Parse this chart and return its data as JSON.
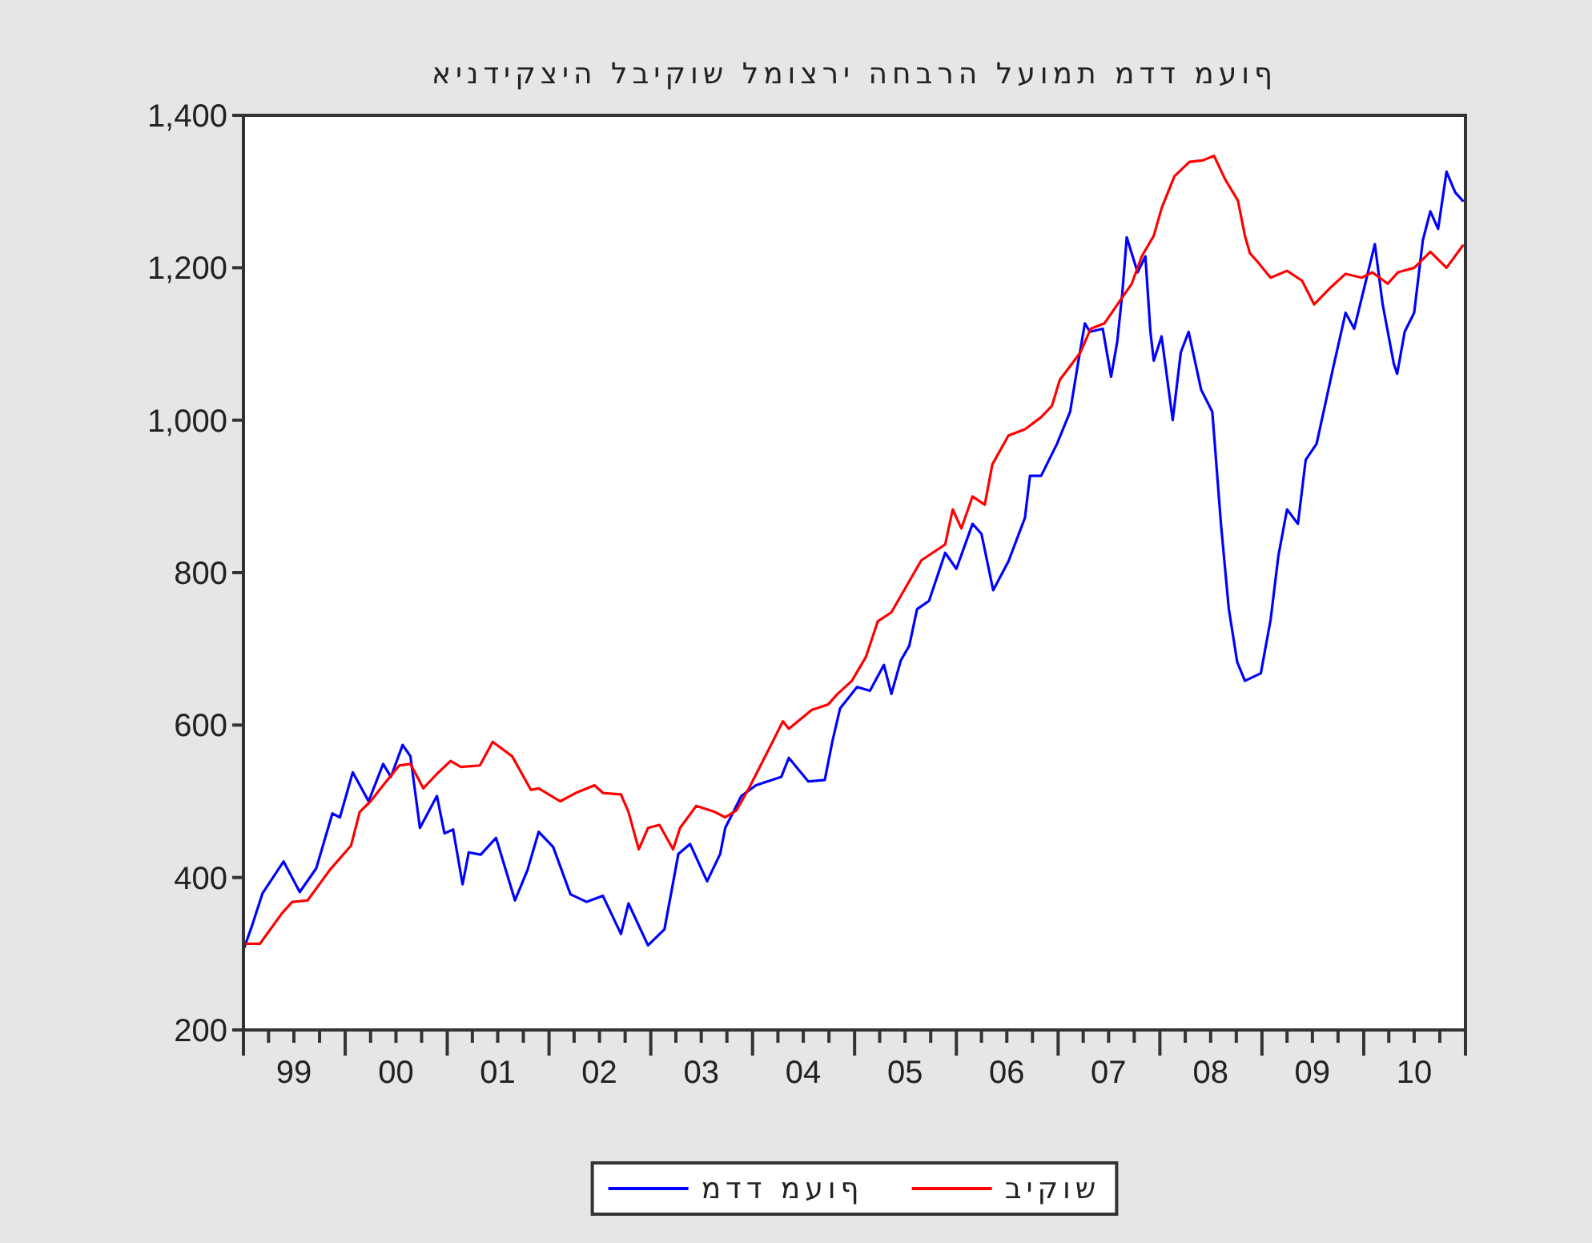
{
  "chart_data": {
    "type": "line",
    "title": "אינדיקציה לביקוש למוצרי החברה לעומת מדד מעוף",
    "xlim": [
      "1999-01-01",
      "2011-01-01"
    ],
    "xticks": [
      {
        "value": "1999",
        "label": null
      },
      {
        "value": "1999-04",
        "label": null
      },
      {
        "value": "1999-07",
        "label": "99"
      },
      {
        "value": "1999-10",
        "label": null
      },
      {
        "value": "2000",
        "label": null
      },
      {
        "value": "2000-04",
        "label": null
      },
      {
        "value": "2000-07",
        "label": "00"
      },
      {
        "value": "2000-10",
        "label": null
      },
      {
        "value": "2001",
        "label": null
      },
      {
        "value": "2001-04",
        "label": null
      },
      {
        "value": "2001-07",
        "label": "01"
      },
      {
        "value": "2001-10",
        "label": null
      },
      {
        "value": "2002",
        "label": null
      },
      {
        "value": "2002-04",
        "label": null
      },
      {
        "value": "2002-07",
        "label": "02"
      },
      {
        "value": "2002-10",
        "label": null
      },
      {
        "value": "2003",
        "label": null
      },
      {
        "value": "2003-04",
        "label": null
      },
      {
        "value": "2003-07",
        "label": "03"
      },
      {
        "value": "2003-10",
        "label": null
      },
      {
        "value": "2004",
        "label": null
      },
      {
        "value": "2004-04",
        "label": null
      },
      {
        "value": "2004-07",
        "label": "04"
      },
      {
        "value": "2004-10",
        "label": null
      },
      {
        "value": "2005",
        "label": null
      },
      {
        "value": "2005-04",
        "label": null
      },
      {
        "value": "2005-07",
        "label": "05"
      },
      {
        "value": "2005-10",
        "label": null
      },
      {
        "value": "2006",
        "label": null
      },
      {
        "value": "2006-04",
        "label": null
      },
      {
        "value": "2006-07",
        "label": "06"
      },
      {
        "value": "2006-10",
        "label": null
      },
      {
        "value": "2007",
        "label": null
      },
      {
        "value": "2007-04",
        "label": null
      },
      {
        "value": "2007-07",
        "label": "07"
      },
      {
        "value": "2007-10",
        "label": null
      },
      {
        "value": "2008",
        "label": null
      },
      {
        "value": "2008-04",
        "label": null
      },
      {
        "value": "2008-07",
        "label": "08"
      },
      {
        "value": "2008-10",
        "label": null
      },
      {
        "value": "2009",
        "label": null
      },
      {
        "value": "2009-04",
        "label": null
      },
      {
        "value": "2009-07",
        "label": "09"
      },
      {
        "value": "2009-10",
        "label": null
      },
      {
        "value": "2010",
        "label": null
      },
      {
        "value": "2010-04",
        "label": null
      },
      {
        "value": "2010-07",
        "label": "10"
      },
      {
        "value": "2010-10",
        "label": null
      },
      {
        "value": "2011",
        "label": null
      }
    ],
    "ylim": [
      200,
      1400
    ],
    "yticks": [
      200,
      400,
      600,
      800,
      {
        "value": 1000,
        "label": "1,000"
      },
      {
        "value": 1200,
        "label": "1,200"
      },
      {
        "value": 1400,
        "label": "1,400"
      }
    ],
    "grid": false,
    "legend": "bottom",
    "marker": "none",
    "line_style": "solid",
    "series": [
      {
        "name": "מדד מעוף",
        "color": "#0000ff",
        "x": [
          "1999-01-01",
          "1999-02-01",
          "1999-03-10",
          "1999-05-25",
          "1999-07-22",
          "1999-09-19",
          "1999-11-16",
          "1999-12-13",
          "2000-01-28",
          "2000-03-25",
          "2000-05-16",
          "2000-06-13",
          "2000-07-25",
          "2000-08-22",
          "2000-09-25",
          "2000-11-25",
          "2000-12-22",
          "2001-01-22",
          "2001-02-25",
          "2001-03-19",
          "2001-05-01",
          "2001-06-25",
          "2001-09-01",
          "2001-10-16",
          "2001-11-25",
          "2002-01-16",
          "2002-03-19",
          "2002-05-16",
          "2002-07-13",
          "2002-09-16",
          "2002-10-13",
          "2002-12-22",
          "2003-02-19",
          "2003-04-10",
          "2003-05-22",
          "2003-07-22",
          "2003-09-07",
          "2003-09-25",
          "2003-11-22",
          "2004-01-13",
          "2004-04-13",
          "2004-05-10",
          "2004-07-19",
          "2004-09-16",
          "2004-10-13",
          "2004-11-10",
          "2005-01-10",
          "2005-02-25",
          "2005-04-16",
          "2005-05-13",
          "2005-06-16",
          "2005-07-16",
          "2005-08-13",
          "2005-09-25",
          "2005-11-22",
          "2006-01-01",
          "2006-02-28",
          "2006-04-01",
          "2006-05-13",
          "2006-07-07",
          "2006-09-04",
          "2006-09-22",
          "2006-11-01",
          "2006-12-28",
          "2007-02-13",
          "2007-03-13",
          "2007-04-07",
          "2007-04-25",
          "2007-06-10",
          "2007-07-10",
          "2007-08-01",
          "2007-08-19",
          "2007-09-04",
          "2007-10-13",
          "2007-11-10",
          "2007-11-28",
          "2007-12-10",
          "2008-01-07",
          "2008-01-25",
          "2008-02-16",
          "2008-03-16",
          "2008-04-13",
          "2008-05-28",
          "2008-07-07",
          "2008-08-07",
          "2008-09-04",
          "2008-10-04",
          "2008-11-01",
          "2008-12-28",
          "2009-02-01",
          "2009-03-01",
          "2009-04-01",
          "2009-05-10",
          "2009-06-07",
          "2009-07-16",
          "2009-09-13",
          "2009-10-28",
          "2009-11-28",
          "2010-01-13",
          "2010-02-10",
          "2010-03-10",
          "2010-04-19",
          "2010-05-01",
          "2010-05-28",
          "2010-07-01",
          "2010-08-01",
          "2010-08-28",
          "2010-09-25",
          "2010-10-25",
          "2010-11-25",
          "2010-12-22"
        ],
        "values": [
          305,
          337,
          379,
          421,
          381,
          412,
          484,
          479,
          538,
          500,
          549,
          532,
          574,
          559,
          465,
          507,
          458,
          463,
          391,
          433,
          430,
          452,
          370,
          410,
          460,
          440,
          378,
          368,
          376,
          326,
          366,
          311,
          332,
          431,
          444,
          395,
          431,
          465,
          507,
          521,
          532,
          557,
          526,
          528,
          578,
          622,
          650,
          645,
          679,
          641,
          685,
          704,
          752,
          763,
          826,
          805,
          864,
          851,
          777,
          815,
          872,
          927,
          927,
          969,
          1011,
          1074,
          1127,
          1116,
          1120,
          1057,
          1103,
          1166,
          1240,
          1194,
          1215,
          1116,
          1078,
          1110,
          1061,
          1000,
          1089,
          1116,
          1040,
          1011,
          864,
          753,
          683,
          658,
          668,
          738,
          822,
          883,
          864,
          948,
          969,
          1068,
          1141,
          1120,
          1189,
          1231,
          1152,
          1074,
          1061,
          1116,
          1141,
          1236,
          1274,
          1251,
          1326,
          1299,
          1288
        ]
      },
      {
        "name": "ביקוש",
        "color": "#ff0000",
        "x": [
          "1999-01-01",
          "1999-03-01",
          "1999-05-19",
          "1999-06-25",
          "1999-08-19",
          "1999-11-07",
          "2000-01-22",
          "2000-02-22",
          "2000-04-01",
          "2000-05-16",
          "2000-07-13",
          "2000-08-22",
          "2000-10-07",
          "2000-11-25",
          "2001-01-13",
          "2001-02-19",
          "2001-04-28",
          "2001-06-13",
          "2001-08-22",
          "2001-10-28",
          "2001-11-25",
          "2002-02-10",
          "2002-04-07",
          "2002-06-13",
          "2002-07-13",
          "2002-09-16",
          "2002-10-13",
          "2002-11-19",
          "2002-12-22",
          "2003-02-01",
          "2003-03-22",
          "2003-04-16",
          "2003-06-13",
          "2003-08-19",
          "2003-09-25",
          "2003-11-04",
          "2003-12-19",
          "2004-02-28",
          "2004-04-19",
          "2004-05-10",
          "2004-08-01",
          "2004-09-28",
          "2004-11-01",
          "2004-12-22",
          "2005-02-10",
          "2005-03-25",
          "2005-05-13",
          "2005-08-28",
          "2005-11-22",
          "2005-12-19",
          "2006-01-19",
          "2006-02-28",
          "2006-04-13",
          "2006-05-10",
          "2006-07-07",
          "2006-09-04",
          "2006-11-01",
          "2006-12-10",
          "2007-01-07",
          "2007-02-07",
          "2007-03-22",
          "2007-04-28",
          "2007-06-16",
          "2007-08-13",
          "2007-09-22",
          "2007-10-28",
          "2007-12-10",
          "2008-01-07",
          "2008-02-22",
          "2008-04-16",
          "2008-06-04",
          "2008-07-13",
          "2008-08-22",
          "2008-10-07",
          "2008-11-01",
          "2008-11-19",
          "2008-12-16",
          "2009-02-01",
          "2009-04-01",
          "2009-05-25",
          "2009-07-07",
          "2009-09-01",
          "2009-10-28",
          "2009-12-25",
          "2010-02-01",
          "2010-03-28",
          "2010-05-04",
          "2010-07-01",
          "2010-08-28",
          "2010-10-25",
          "2010-12-22"
        ],
        "values": [
          313,
          313,
          353,
          368,
          370,
          410,
          442,
          486,
          500,
          521,
          547,
          549,
          517,
          536,
          553,
          545,
          547,
          578,
          559,
          515,
          517,
          500,
          511,
          521,
          511,
          509,
          486,
          437,
          465,
          469,
          437,
          465,
          494,
          486,
          479,
          488,
          517,
          568,
          605,
          595,
          620,
          627,
          641,
          658,
          689,
          736,
          748,
          816,
          837,
          883,
          858,
          900,
          889,
          942,
          980,
          988,
          1004,
          1019,
          1053,
          1068,
          1089,
          1120,
          1127,
          1158,
          1179,
          1215,
          1242,
          1278,
          1320,
          1339,
          1341,
          1347,
          1316,
          1288,
          1242,
          1219,
          1208,
          1187,
          1196,
          1183,
          1152,
          1173,
          1192,
          1187,
          1194,
          1179,
          1194,
          1200,
          1221,
          1200,
          1229
        ]
      }
    ]
  }
}
